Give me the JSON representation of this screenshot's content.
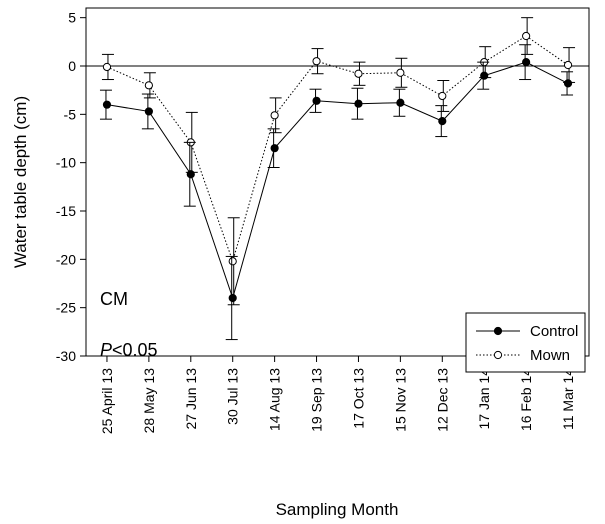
{
  "chart_data": {
    "type": "line",
    "xlabel": "Sampling Month",
    "ylabel": "Water table depth (cm)",
    "ylim": [
      -30,
      6
    ],
    "yticks": [
      -30,
      -25,
      -20,
      -15,
      -10,
      -5,
      0,
      5
    ],
    "reference_line": 0,
    "grid": false,
    "legend_position": "bottom-right",
    "categories": [
      "25 April 13",
      "28 May 13",
      "27 Jun 13",
      "30 Jul 13",
      "14 Aug 13",
      "19 Sep 13",
      "17 Oct 13",
      "15 Nov 13",
      "12 Dec 13",
      "17 Jan 14",
      "16 Feb 14",
      "11 Mar 14"
    ],
    "annotations": [
      {
        "text": "CM"
      },
      {
        "text_prefix": "P",
        "text_suffix": "<0.05"
      }
    ],
    "series": [
      {
        "name": "Control",
        "marker": "filled-circle",
        "line": "solid",
        "color": "#000000",
        "values": [
          -4.0,
          -4.7,
          -11.2,
          -24.0,
          -8.5,
          -3.6,
          -3.9,
          -3.8,
          -5.7,
          -1.0,
          0.4,
          -1.8
        ],
        "errors": [
          1.5,
          1.8,
          3.3,
          4.3,
          2.0,
          1.2,
          1.6,
          1.4,
          1.6,
          1.4,
          1.8,
          1.2
        ]
      },
      {
        "name": "Mown",
        "marker": "open-circle",
        "line": "dotted",
        "color": "#000000",
        "values": [
          -0.1,
          -2.0,
          -7.9,
          -20.2,
          -5.1,
          0.5,
          -0.8,
          -0.7,
          -3.1,
          0.4,
          3.1,
          0.1
        ],
        "errors": [
          1.3,
          1.3,
          3.1,
          4.5,
          1.8,
          1.3,
          1.2,
          1.5,
          1.6,
          1.6,
          1.9,
          1.8
        ]
      }
    ]
  }
}
